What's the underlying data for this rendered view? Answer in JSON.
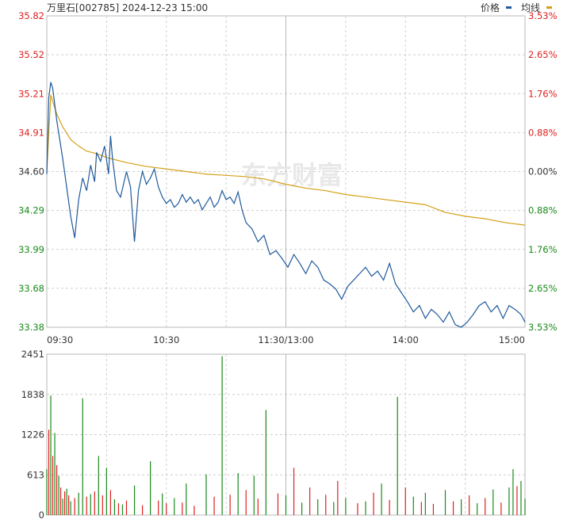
{
  "header": {
    "title": "万里石[002785] 2024-12-23 15:00",
    "legend_price": "价格",
    "legend_avg": "均线",
    "price_color": "#1f5a9c",
    "avg_color": "#d4a017"
  },
  "watermark": "东方财富",
  "chart_data": [
    {
      "type": "line",
      "title": "",
      "prev_close": 34.6,
      "ylim": [
        33.38,
        35.82
      ],
      "y_ticks": [
        "35.82",
        "35.52",
        "35.21",
        "34.91",
        "34.60",
        "34.29",
        "33.99",
        "33.68",
        "33.38"
      ],
      "y_right_ticks": [
        "3.53%",
        "2.65%",
        "1.76%",
        "0.88%",
        "0.00%",
        "0.88%",
        "1.76%",
        "2.65%",
        "3.53%"
      ],
      "y_right_colors": [
        "#e02020",
        "#e02020",
        "#e02020",
        "#e02020",
        "#333333",
        "#1a8a1a",
        "#1a8a1a",
        "#1a8a1a",
        "#1a8a1a"
      ],
      "x_ticks": [
        "09:30",
        "10:30",
        "11:30/13:00",
        "14:00",
        "15:00"
      ],
      "series": [
        {
          "name": "价格",
          "color": "#1f5a9c",
          "x": [
            0,
            1,
            2,
            3,
            5,
            8,
            12,
            14,
            16,
            18,
            20,
            22,
            24,
            25,
            27,
            29,
            31,
            32,
            33,
            35,
            37,
            40,
            42,
            44,
            46,
            48,
            50,
            52,
            54,
            56,
            58,
            60,
            62,
            64,
            66,
            68,
            70,
            72,
            74,
            76,
            78,
            80,
            82,
            84,
            86,
            88,
            90,
            92,
            94,
            96,
            98,
            100,
            103,
            106,
            109,
            112,
            115,
            118,
            121,
            124,
            127,
            130,
            133,
            136,
            139,
            142,
            145,
            148,
            151,
            154,
            157,
            160,
            163,
            166,
            169,
            172,
            175,
            178,
            181,
            184,
            187,
            190,
            193,
            196,
            199,
            202,
            205,
            208,
            211,
            214,
            217,
            220,
            223,
            226,
            229,
            232,
            235,
            238,
            240
          ],
          "values": [
            34.58,
            35.18,
            35.3,
            35.25,
            35.0,
            34.7,
            34.25,
            34.08,
            34.38,
            34.55,
            34.45,
            34.65,
            34.52,
            34.75,
            34.68,
            34.8,
            34.58,
            34.88,
            34.7,
            34.45,
            34.4,
            34.6,
            34.48,
            34.05,
            34.45,
            34.6,
            34.5,
            34.55,
            34.62,
            34.48,
            34.4,
            34.35,
            34.38,
            34.32,
            34.35,
            34.42,
            34.36,
            34.4,
            34.35,
            34.38,
            34.3,
            34.35,
            34.4,
            34.32,
            34.36,
            34.45,
            34.38,
            34.4,
            34.35,
            34.44,
            34.3,
            34.2,
            34.15,
            34.05,
            34.1,
            33.95,
            33.98,
            33.92,
            33.85,
            33.95,
            33.88,
            33.8,
            33.9,
            33.85,
            33.75,
            33.72,
            33.68,
            33.6,
            33.7,
            33.75,
            33.8,
            33.85,
            33.78,
            33.82,
            33.75,
            33.88,
            33.72,
            33.65,
            33.58,
            33.5,
            33.55,
            33.45,
            33.52,
            33.48,
            33.42,
            33.5,
            33.4,
            33.38,
            33.42,
            33.48,
            33.55,
            33.58,
            33.5,
            33.55,
            33.45,
            33.55,
            33.52,
            33.48,
            33.42
          ]
        },
        {
          "name": "均线",
          "color": "#d4a017",
          "x": [
            0,
            2,
            5,
            8,
            12,
            16,
            20,
            25,
            30,
            35,
            40,
            50,
            60,
            70,
            80,
            90,
            100,
            110,
            120,
            130,
            140,
            150,
            160,
            170,
            180,
            190,
            200,
            210,
            220,
            230,
            240
          ],
          "values": [
            34.6,
            35.2,
            35.05,
            34.95,
            34.85,
            34.8,
            34.76,
            34.74,
            34.71,
            34.69,
            34.67,
            34.64,
            34.62,
            34.6,
            34.58,
            34.57,
            34.56,
            34.54,
            34.5,
            34.47,
            34.45,
            34.42,
            34.4,
            34.38,
            34.36,
            34.34,
            34.28,
            34.25,
            34.23,
            34.2,
            34.18
          ]
        }
      ]
    },
    {
      "type": "bar",
      "title": "",
      "ylim": [
        0,
        2451
      ],
      "y_ticks": [
        "2451",
        "1838",
        "1226",
        "613",
        "0"
      ],
      "x": [
        0,
        1,
        2,
        3,
        4,
        5,
        6,
        7,
        8,
        9,
        10,
        11,
        12,
        14,
        16,
        18,
        20,
        22,
        24,
        26,
        28,
        30,
        32,
        34,
        36,
        38,
        40,
        44,
        48,
        52,
        56,
        58,
        60,
        64,
        68,
        70,
        74,
        80,
        84,
        88,
        92,
        96,
        100,
        104,
        106,
        110,
        116,
        120,
        124,
        128,
        132,
        136,
        140,
        144,
        146,
        150,
        156,
        160,
        164,
        168,
        172,
        176,
        180,
        184,
        188,
        190,
        194,
        200,
        204,
        208,
        212,
        216,
        220,
        224,
        228,
        232,
        234,
        236,
        238,
        240
      ],
      "values": [
        700,
        1300,
        1820,
        900,
        1250,
        760,
        600,
        420,
        250,
        360,
        400,
        300,
        210,
        260,
        340,
        1780,
        280,
        320,
        360,
        900,
        300,
        720,
        380,
        240,
        180,
        160,
        220,
        450,
        150,
        820,
        220,
        330,
        180,
        260,
        190,
        480,
        140,
        620,
        280,
        2420,
        310,
        640,
        380,
        600,
        250,
        1600,
        330,
        300,
        720,
        190,
        420,
        240,
        310,
        200,
        520,
        260,
        180,
        210,
        340,
        480,
        230,
        1800,
        420,
        280,
        200,
        340,
        170,
        380,
        210,
        240,
        300,
        180,
        260,
        390,
        190,
        420,
        700,
        440,
        520,
        250
      ],
      "colors": [
        "#1a8a1a",
        "#e02020",
        "#1a8a1a",
        "#e02020",
        "#1a8a1a",
        "#e02020",
        "#1a8a1a",
        "#e02020",
        "#1a8a1a",
        "#e02020",
        "#1a8a1a",
        "#e02020",
        "#1a8a1a",
        "#e02020",
        "#1a8a1a",
        "#1a8a1a",
        "#e02020",
        "#1a8a1a",
        "#e02020",
        "#1a8a1a",
        "#e02020",
        "#1a8a1a",
        "#e02020",
        "#1a8a1a",
        "#e02020",
        "#1a8a1a",
        "#e02020",
        "#1a8a1a",
        "#e02020",
        "#1a8a1a",
        "#e02020",
        "#1a8a1a",
        "#e02020",
        "#1a8a1a",
        "#e02020",
        "#1a8a1a",
        "#e02020",
        "#1a8a1a",
        "#e02020",
        "#1a8a1a",
        "#e02020",
        "#1a8a1a",
        "#e02020",
        "#1a8a1a",
        "#e02020",
        "#1a8a1a",
        "#e02020",
        "#1a8a1a",
        "#e02020",
        "#1a8a1a",
        "#e02020",
        "#1a8a1a",
        "#e02020",
        "#1a8a1a",
        "#e02020",
        "#1a8a1a",
        "#e02020",
        "#1a8a1a",
        "#e02020",
        "#1a8a1a",
        "#e02020",
        "#1a8a1a",
        "#e02020",
        "#1a8a1a",
        "#e02020",
        "#1a8a1a",
        "#e02020",
        "#1a8a1a",
        "#e02020",
        "#1a8a1a",
        "#e02020",
        "#1a8a1a",
        "#e02020",
        "#1a8a1a",
        "#e02020",
        "#1a8a1a",
        "#1a8a1a",
        "#e02020",
        "#1a8a1a",
        "#1a8a1a"
      ]
    }
  ]
}
